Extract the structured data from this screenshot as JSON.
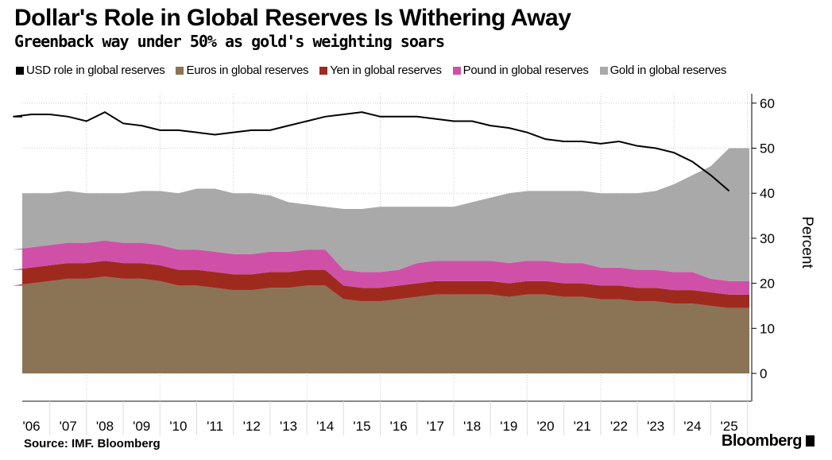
{
  "chart_data": {
    "type": "area",
    "title": "Dollar's Role in Global Reserves Is Withering Away",
    "subtitle": "Greenback way under 50% as gold's weighting soars",
    "ylabel": "Percent",
    "ylim": [
      -5,
      62
    ],
    "xlim": [
      2006.25,
      2026.05
    ],
    "yticks": [
      "0",
      "10",
      "20",
      "30",
      "40",
      "50",
      "60"
    ],
    "xtick_labels": [
      "'06",
      "'07",
      "'08",
      "'09",
      "'10",
      "'11",
      "'12",
      "'13",
      "'14",
      "'15",
      "'16",
      "'17",
      "'18",
      "'19",
      "'20",
      "'21",
      "'22",
      "'23",
      "'24",
      "'25"
    ],
    "grid": true,
    "legend_position": "top",
    "x": [
      2006,
      2006.5,
      2007,
      2007.5,
      2008,
      2008.5,
      2009,
      2009.5,
      2010,
      2010.5,
      2011,
      2011.5,
      2012,
      2012.5,
      2013,
      2013.5,
      2014,
      2014.5,
      2015,
      2015.5,
      2016,
      2016.5,
      2017,
      2017.5,
      2018,
      2018.5,
      2019,
      2019.5,
      2020,
      2020.5,
      2021,
      2021.5,
      2022,
      2022.5,
      2023,
      2023.5,
      2024,
      2024.5,
      2025,
      2025.5
    ],
    "series": [
      {
        "name": "USD role in global reserves",
        "kind": "line",
        "color": "#000000",
        "values": [
          57,
          57.5,
          57.5,
          57,
          56,
          58,
          55.5,
          55,
          54,
          54,
          53.5,
          53,
          53.5,
          54,
          54,
          55,
          56,
          57,
          57.5,
          58,
          57,
          57,
          57,
          56.5,
          56,
          56,
          55,
          54.5,
          53.5,
          52,
          51.5,
          51.5,
          51,
          51.5,
          50.5,
          50,
          49,
          47,
          44,
          40.5
        ]
      },
      {
        "name": "Euros in global reserves",
        "kind": "stack",
        "color": "#8b7355",
        "values": [
          19.5,
          20,
          20.5,
          21,
          21,
          21.5,
          21,
          21,
          20.5,
          19.5,
          19.5,
          19,
          18.5,
          18.5,
          19,
          19,
          19.5,
          19.5,
          16.5,
          16,
          16,
          16.5,
          17,
          17.5,
          17.5,
          17.5,
          17.5,
          17,
          17.5,
          17.5,
          17,
          17,
          16.5,
          16.5,
          16,
          16,
          15.5,
          15.5,
          15,
          14.5
        ]
      },
      {
        "name": "Yen in global reserves",
        "kind": "stack",
        "color": "#9e2a1e",
        "values": [
          3.5,
          3.5,
          3.5,
          3.5,
          3.5,
          3.5,
          3.5,
          3.5,
          3.5,
          3.5,
          3.5,
          3.5,
          3.5,
          3.5,
          3.5,
          3.5,
          3.5,
          3.5,
          3,
          3,
          3,
          3,
          3,
          3,
          3,
          3,
          3,
          3,
          3,
          3,
          3,
          3,
          3,
          3,
          3,
          3,
          3,
          3,
          3,
          3
        ]
      },
      {
        "name": "Pound in global reserves",
        "kind": "stack",
        "color": "#d050a8",
        "values": [
          4.5,
          4.5,
          4.5,
          4.5,
          4.5,
          4.5,
          4.5,
          4.5,
          4.5,
          4.5,
          4.5,
          4.5,
          4.5,
          4.5,
          4.5,
          4.5,
          4.5,
          4.5,
          3.5,
          3.5,
          3.5,
          3.5,
          4.5,
          4.5,
          4.5,
          4.5,
          4.5,
          4.5,
          4.5,
          4.5,
          4.5,
          4.5,
          4,
          4,
          4,
          4,
          4,
          4,
          3,
          3
        ]
      },
      {
        "name": "Gold in global reserves",
        "kind": "stack",
        "color": "#a9a9a9",
        "values": [
          12.5,
          12,
          11.5,
          11.5,
          11,
          10.5,
          11,
          11.5,
          12,
          12.5,
          13.5,
          14,
          13.5,
          13.5,
          12.5,
          11,
          10,
          9.5,
          13.5,
          14,
          14.5,
          14,
          12.5,
          12,
          12,
          13,
          14,
          15.5,
          15.5,
          15.5,
          16,
          16,
          16.5,
          16.5,
          17,
          17.5,
          19.5,
          21.5,
          25,
          29.5
        ]
      }
    ]
  },
  "footer": {
    "source": "Source: IMF. Bloomberg",
    "brand": "Bloomberg"
  }
}
